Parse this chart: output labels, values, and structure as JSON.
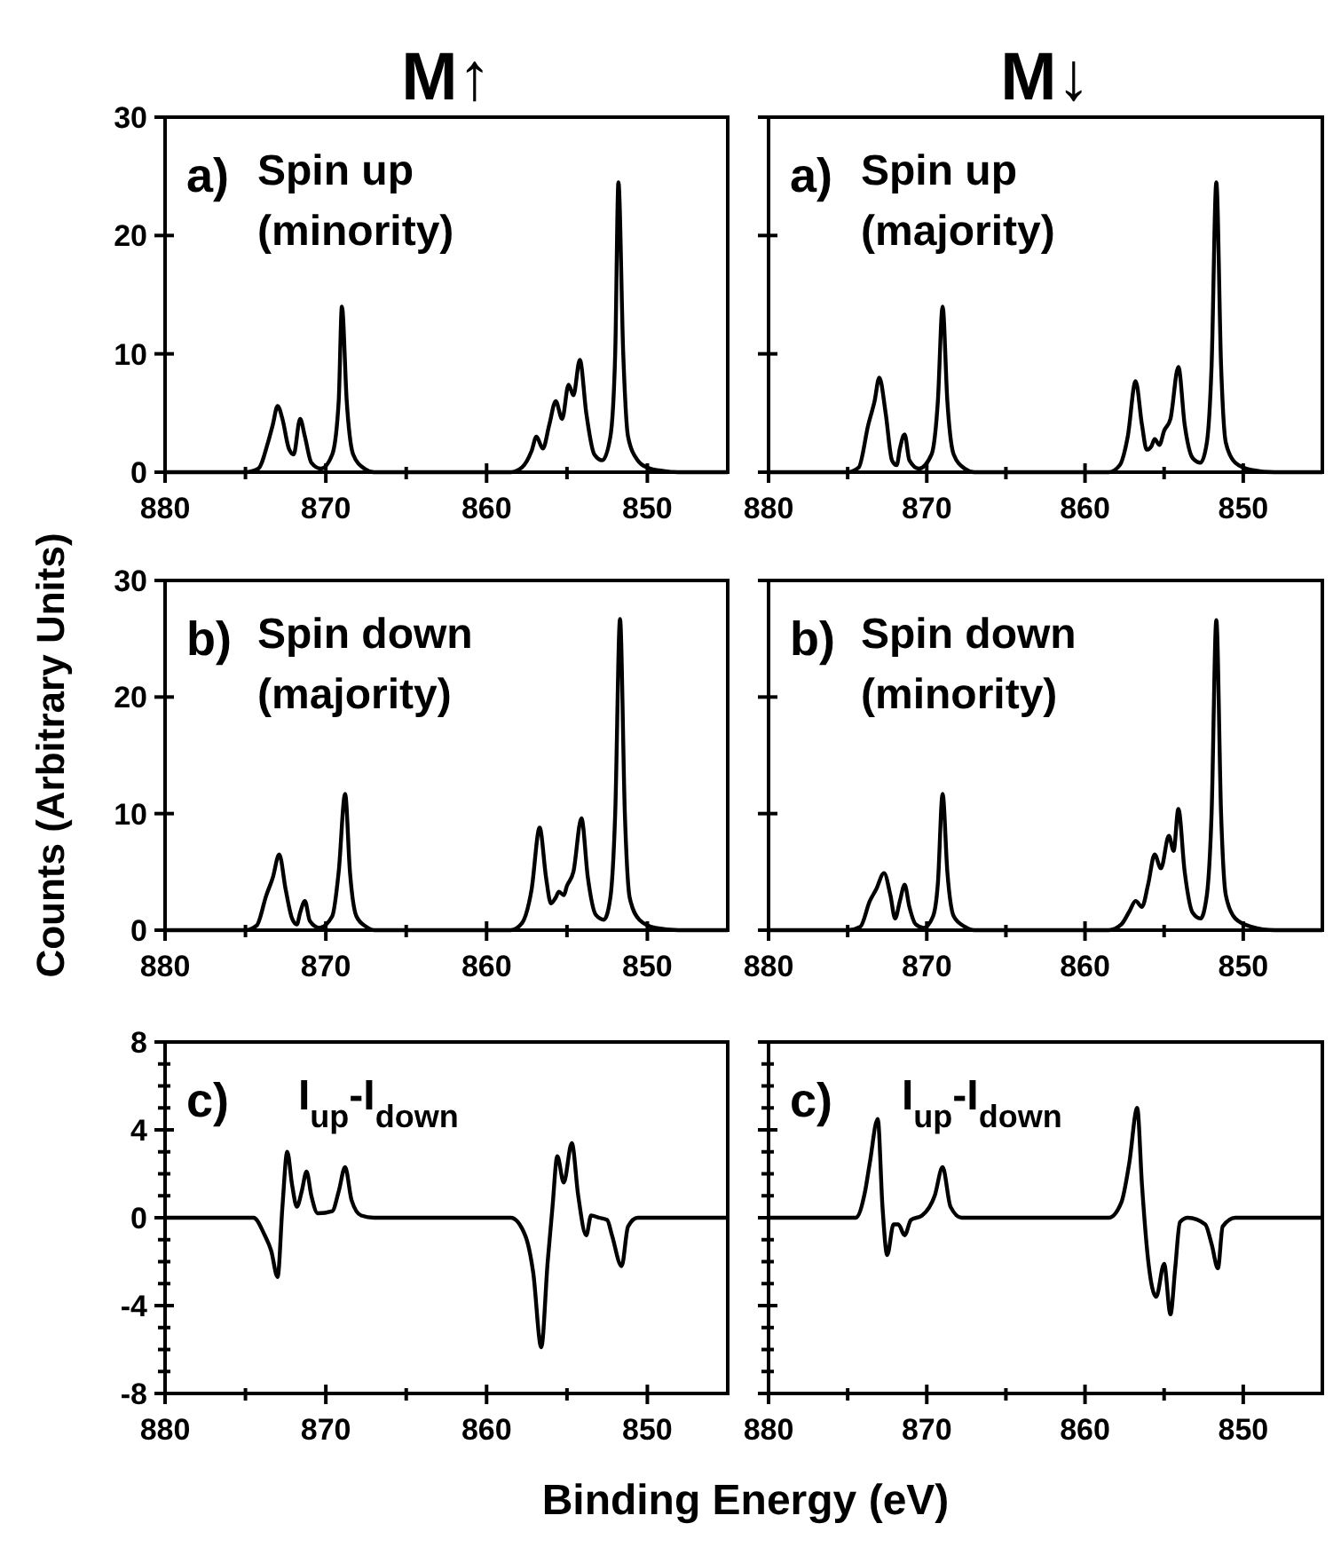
{
  "chart_data": [
    {
      "type": "line",
      "title": "M↑",
      "annotations": [
        "a)",
        "Spin up",
        "(minority)"
      ],
      "xlim": [
        880,
        845
      ],
      "ylim": [
        0,
        30
      ],
      "xticks": [
        880,
        {
          "value": 875,
          "label": null
        },
        870,
        {
          "value": 865,
          "label": null
        },
        860,
        {
          "value": 855,
          "label": null
        },
        850
      ],
      "yticks": [
        0,
        10,
        20,
        30
      ],
      "series": [
        {
          "color": "#000000",
          "x": [
            880,
            875,
            874.2,
            873.6,
            873.3,
            873.0,
            872.7,
            872.3,
            872.0,
            871.6,
            871.3,
            870.9,
            870.3,
            869.6,
            869.2,
            869.0,
            868.7,
            868.3,
            867.6,
            867,
            858.5,
            857.8,
            857.2,
            856.9,
            856.5,
            856.1,
            855.7,
            855.3,
            854.9,
            854.6,
            854.2,
            853.8,
            853.3,
            852.8,
            852.3,
            852.0,
            851.8,
            851.5,
            851.2,
            850.6,
            850,
            849,
            848,
            845
          ],
          "values": [
            0,
            0,
            0.3,
            2.5,
            4.0,
            5.6,
            4.5,
            2.0,
            1.5,
            4.5,
            3.0,
            0.8,
            0.3,
            1.5,
            6,
            14.0,
            6,
            1.5,
            0.3,
            0,
            0,
            0.4,
            1.8,
            3.0,
            2.0,
            4.0,
            6.0,
            4.5,
            7.4,
            6.5,
            9.5,
            5.0,
            1.5,
            1.0,
            3,
            10,
            24.5,
            10,
            3,
            1.0,
            0.4,
            0.1,
            0,
            0
          ]
        }
      ]
    },
    {
      "type": "line",
      "title": "M↓",
      "annotations": [
        "a)",
        "Spin up",
        "(majority)"
      ],
      "xlim": [
        880,
        845
      ],
      "ylim": [
        0,
        30
      ],
      "xticks": [
        880,
        {
          "value": 875,
          "label": null
        },
        870,
        {
          "value": 865,
          "label": null
        },
        860,
        {
          "value": 855,
          "label": null
        },
        850
      ],
      "yticks": [
        0,
        10,
        20,
        30
      ],
      "tick_labels": "x",
      "series": [
        {
          "color": "#000000",
          "x": [
            880,
            875,
            874.3,
            873.7,
            873.3,
            873.0,
            872.6,
            872.2,
            871.9,
            871.7,
            871.4,
            871.1,
            870.5,
            869.7,
            869.3,
            869.0,
            868.7,
            868.3,
            867.6,
            867,
            858.5,
            857.8,
            857.3,
            856.8,
            856.4,
            856.1,
            855.8,
            855.6,
            855.3,
            855.0,
            854.6,
            854.1,
            853.7,
            853.2,
            852.7,
            852.3,
            852.0,
            851.7,
            851.4,
            851.1,
            850.5,
            849.5,
            848,
            845
          ],
          "values": [
            0,
            0,
            0.4,
            4.0,
            6.0,
            8.0,
            5.0,
            1.0,
            0.6,
            2.0,
            3.2,
            1.0,
            0.3,
            1.5,
            6,
            14.0,
            6,
            1.5,
            0.3,
            0,
            0,
            0.6,
            3.0,
            7.7,
            4.0,
            1.9,
            2.2,
            2.8,
            2.3,
            3.5,
            4.5,
            8.9,
            4.0,
            1.2,
            0.8,
            2.5,
            9,
            24.5,
            9,
            2.5,
            0.8,
            0.2,
            0,
            0
          ]
        }
      ]
    },
    {
      "type": "line",
      "ylabel": "Counts (Arbitrary Units)",
      "annotations": [
        "b)",
        "Spin down",
        "(majority)"
      ],
      "xlim": [
        880,
        845
      ],
      "ylim": [
        0,
        30
      ],
      "xticks": [
        880,
        {
          "value": 875,
          "label": null
        },
        870,
        {
          "value": 865,
          "label": null
        },
        860,
        {
          "value": 855,
          "label": null
        },
        850
      ],
      "yticks": [
        0,
        10,
        20,
        30
      ],
      "series": [
        {
          "color": "#000000",
          "x": [
            880,
            875,
            874.3,
            873.7,
            873.3,
            872.9,
            872.5,
            872.1,
            871.8,
            871.6,
            871.3,
            871.0,
            870.4,
            869.6,
            869.2,
            868.8,
            868.5,
            868.1,
            867.5,
            867,
            858.5,
            857.8,
            857.2,
            856.7,
            856.3,
            856.0,
            855.7,
            855.5,
            855.2,
            855.0,
            854.6,
            854.1,
            853.7,
            853.2,
            852.7,
            852.3,
            852.0,
            851.7,
            851.4,
            851.1,
            850.5,
            849.5,
            848,
            845
          ],
          "values": [
            0,
            0,
            0.4,
            3.0,
            4.5,
            6.5,
            3.5,
            1.0,
            0.5,
            1.5,
            2.5,
            0.8,
            0.2,
            1.2,
            5,
            11.7,
            5,
            1.2,
            0.3,
            0,
            0,
            0.6,
            3.5,
            8.8,
            4.5,
            2.3,
            2.8,
            3.3,
            3.0,
            3.8,
            5.0,
            9.6,
            4.5,
            1.3,
            0.9,
            2.8,
            10,
            26.7,
            10,
            2.8,
            0.9,
            0.2,
            0,
            0
          ]
        }
      ]
    },
    {
      "type": "line",
      "annotations": [
        "b)",
        "Spin down",
        "(minority)"
      ],
      "xlim": [
        880,
        845
      ],
      "ylim": [
        0,
        30
      ],
      "xticks": [
        880,
        {
          "value": 875,
          "label": null
        },
        870,
        {
          "value": 865,
          "label": null
        },
        860,
        {
          "value": 855,
          "label": null
        },
        850
      ],
      "yticks": [
        0,
        10,
        20,
        30
      ],
      "tick_labels": "x",
      "series": [
        {
          "color": "#000000",
          "x": [
            880,
            875,
            874.2,
            873.6,
            873.2,
            872.7,
            872.3,
            872.0,
            871.7,
            871.4,
            871.1,
            870.7,
            870.2,
            869.6,
            869.3,
            869.0,
            868.7,
            868.3,
            867.6,
            867,
            858.5,
            857.7,
            857.2,
            856.8,
            856.4,
            856.0,
            855.6,
            855.2,
            854.7,
            854.4,
            854.1,
            853.7,
            853.2,
            852.7,
            852.3,
            852.0,
            851.7,
            851.4,
            851.1,
            850.5,
            849.5,
            848,
            845
          ],
          "values": [
            0,
            0,
            0.3,
            2.5,
            3.5,
            4.9,
            3.0,
            1.0,
            2.5,
            3.9,
            2.0,
            0.5,
            0.2,
            1.2,
            4,
            11.7,
            5,
            1.2,
            0.3,
            0,
            0,
            0.5,
            1.6,
            2.5,
            2.0,
            4.0,
            6.5,
            5.3,
            8.1,
            6.8,
            10.4,
            5.0,
            1.5,
            1.0,
            3,
            10,
            26.6,
            10,
            3,
            1.0,
            0.3,
            0,
            0
          ]
        }
      ]
    },
    {
      "type": "line",
      "xlabel": "Binding Energy (eV)",
      "annotations": [
        "c)",
        "I$_{up}$-I$_{down}$"
      ],
      "xlim": [
        880,
        845
      ],
      "ylim": [
        -8,
        8
      ],
      "xticks": [
        880,
        {
          "value": 875,
          "label": null
        },
        870,
        {
          "value": 865,
          "label": null
        },
        860,
        {
          "value": 855,
          "label": null
        },
        850
      ],
      "yticks": [
        -8,
        {
          "value": -7,
          "label": null
        },
        {
          "value": -6,
          "label": null
        },
        {
          "value": -5,
          "label": null
        },
        -4,
        {
          "value": -3,
          "label": null
        },
        {
          "value": -2,
          "label": null
        },
        {
          "value": -1,
          "label": null
        },
        0,
        {
          "value": 1,
          "label": null
        },
        {
          "value": 2,
          "label": null
        },
        {
          "value": 3,
          "label": null
        },
        4,
        {
          "value": 5,
          "label": null
        },
        {
          "value": 6,
          "label": null
        },
        {
          "value": 7,
          "label": null
        },
        8
      ],
      "series": [
        {
          "color": "#000000",
          "x": [
            880,
            874.5,
            873.8,
            873.4,
            873.0,
            872.7,
            872.4,
            872.1,
            871.8,
            871.5,
            871.2,
            870.9,
            870.5,
            869.6,
            869.2,
            868.8,
            868.4,
            867.8,
            867,
            858.5,
            857.6,
            857.1,
            856.6,
            856.2,
            855.9,
            855.6,
            855.2,
            854.7,
            854.3,
            853.8,
            853.5,
            853.0,
            852.5,
            852.2,
            851.6,
            851.2,
            850.6,
            845
          ],
          "values": [
            0,
            0,
            -0.8,
            -1.5,
            -2.7,
            0.5,
            3.0,
            1.5,
            0.5,
            1.2,
            2.1,
            1.0,
            0.2,
            0.3,
            1.2,
            2.3,
            0.8,
            0.1,
            0,
            0,
            -0.8,
            -2.5,
            -5.9,
            -2.0,
            0.5,
            2.8,
            1.6,
            3.4,
            1.0,
            -0.8,
            0.1,
            0.0,
            -0.1,
            -0.8,
            -2.2,
            -0.4,
            0,
            0
          ]
        }
      ]
    },
    {
      "type": "line",
      "annotations": [
        "c)",
        "I$_{up}$-I$_{down}$"
      ],
      "xlim": [
        880,
        845
      ],
      "ylim": [
        -8,
        8
      ],
      "xticks": [
        880,
        {
          "value": 875,
          "label": null
        },
        870,
        {
          "value": 865,
          "label": null
        },
        860,
        {
          "value": 855,
          "label": null
        },
        850
      ],
      "yticks": [
        -8,
        {
          "value": -7,
          "label": null
        },
        {
          "value": -6,
          "label": null
        },
        {
          "value": -5,
          "label": null
        },
        -4,
        {
          "value": -3,
          "label": null
        },
        {
          "value": -2,
          "label": null
        },
        {
          "value": -1,
          "label": null
        },
        0,
        {
          "value": 1,
          "label": null
        },
        {
          "value": 2,
          "label": null
        },
        {
          "value": 3,
          "label": null
        },
        4,
        {
          "value": 5,
          "label": null
        },
        {
          "value": 6,
          "label": null
        },
        {
          "value": 7,
          "label": null
        },
        8
      ],
      "tick_labels": "x",
      "series": [
        {
          "color": "#000000",
          "x": [
            880,
            874.5,
            873.9,
            873.6,
            873.1,
            872.8,
            872.5,
            872.1,
            871.8,
            871.4,
            871.0,
            870.3,
            869.5,
            869.0,
            868.5,
            867.8,
            858.5,
            857.7,
            857.2,
            856.7,
            856.4,
            856.0,
            855.5,
            855.0,
            854.6,
            854.3,
            854.0,
            853.5,
            852.4,
            852.0,
            851.6,
            851.3,
            850.5,
            845
          ],
          "values": [
            0,
            0,
            1.2,
            2.5,
            4.5,
            0.5,
            -1.7,
            -0.3,
            -0.3,
            -0.8,
            -0.1,
            0.1,
            1.0,
            2.3,
            0.5,
            0,
            0,
            0.7,
            2.5,
            5.0,
            1.5,
            -2.0,
            -3.6,
            -2.1,
            -4.4,
            -2.3,
            -0.2,
            0,
            -0.3,
            -1.2,
            -2.3,
            -0.4,
            0,
            0
          ]
        }
      ]
    }
  ]
}
